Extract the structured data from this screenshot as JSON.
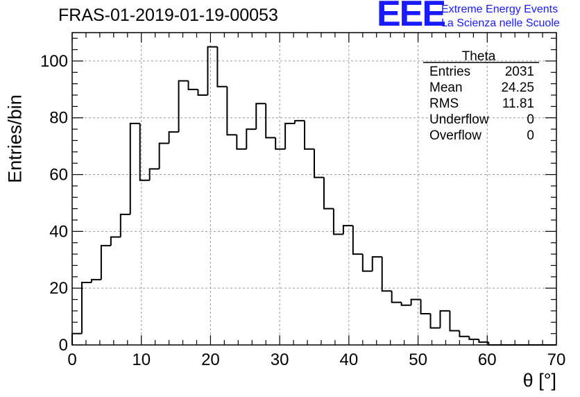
{
  "header": {
    "run_title": "FRAS-01-2019-01-19-00053",
    "logo_text": "EEE",
    "logo_line1": "Extreme Energy Events",
    "logo_line2": "La Scienza nelle Scuole",
    "logo_color": "#1a1aff"
  },
  "stats_box": {
    "title": "Theta",
    "rows": [
      {
        "label": "Entries",
        "value": "2031"
      },
      {
        "label": "Mean",
        "value": "24.25"
      },
      {
        "label": "RMS",
        "value": "11.81"
      },
      {
        "label": "Underflow",
        "value": "0"
      },
      {
        "label": "Overflow",
        "value": "0"
      }
    ]
  },
  "chart_data": {
    "type": "bar",
    "style": "step-histogram",
    "xlabel": "θ [°]",
    "ylabel": "Entries/bin",
    "xlim": [
      0,
      70
    ],
    "ylim": [
      0,
      110
    ],
    "xticks": [
      0,
      10,
      20,
      30,
      40,
      50,
      60,
      70
    ],
    "yticks": [
      0,
      20,
      40,
      60,
      80,
      100
    ],
    "grid": true,
    "bin_width": 1.4,
    "bin_edges_start": 0,
    "values": [
      4,
      22,
      23,
      35,
      38,
      46,
      78,
      58,
      62,
      71,
      75,
      93,
      90,
      88,
      105,
      91,
      74,
      69,
      76,
      85,
      73,
      69,
      78,
      79,
      69,
      59,
      48,
      39,
      42,
      32,
      26,
      31,
      19,
      15,
      14,
      16,
      11,
      6,
      12,
      5,
      3,
      2,
      1,
      0,
      0,
      0,
      0,
      0,
      0,
      0
    ]
  }
}
